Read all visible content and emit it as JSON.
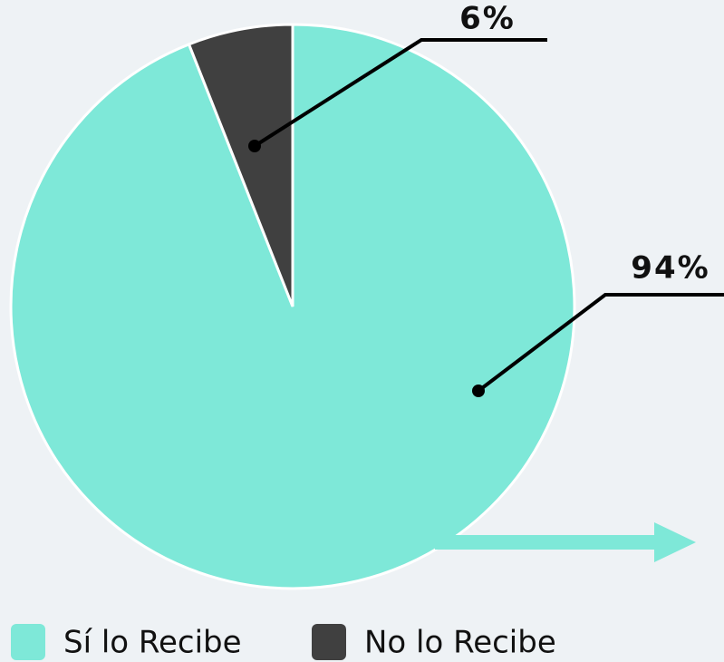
{
  "chart_data": {
    "type": "pie",
    "categories": [
      "Sí lo Recibe",
      "No lo Recibe"
    ],
    "values": [
      94,
      6
    ],
    "value_labels": [
      "94%",
      "6%"
    ],
    "colors": [
      "#7ee8d8",
      "#404040"
    ]
  }
}
